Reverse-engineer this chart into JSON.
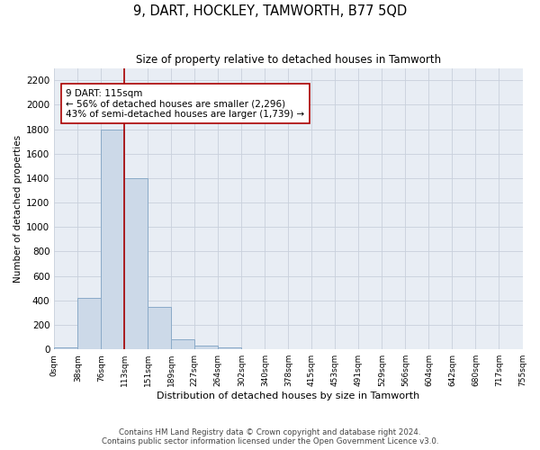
{
  "title": "9, DART, HOCKLEY, TAMWORTH, B77 5QD",
  "subtitle": "Size of property relative to detached houses in Tamworth",
  "xlabel": "Distribution of detached houses by size in Tamworth",
  "ylabel": "Number of detached properties",
  "bin_labels": [
    "0sqm",
    "38sqm",
    "76sqm",
    "113sqm",
    "151sqm",
    "189sqm",
    "227sqm",
    "264sqm",
    "302sqm",
    "340sqm",
    "378sqm",
    "415sqm",
    "453sqm",
    "491sqm",
    "529sqm",
    "566sqm",
    "604sqm",
    "642sqm",
    "680sqm",
    "717sqm",
    "755sqm"
  ],
  "bar_values": [
    15,
    420,
    1800,
    1400,
    350,
    80,
    30,
    15,
    0,
    0,
    0,
    0,
    0,
    0,
    0,
    0,
    0,
    0,
    0,
    0
  ],
  "bar_color": "#ccd9e8",
  "bar_edge_color": "#8aaac8",
  "grid_color": "#c8d0dc",
  "background_color": "#e8edf4",
  "vline_x": 3.0,
  "vline_color": "#aa0000",
  "annotation_text": "9 DART: 115sqm\n← 56% of detached houses are smaller (2,296)\n43% of semi-detached houses are larger (1,739) →",
  "annotation_box_color": "#ffffff",
  "annotation_box_edge": "#aa0000",
  "ylim": [
    0,
    2300
  ],
  "yticks": [
    0,
    200,
    400,
    600,
    800,
    1000,
    1200,
    1400,
    1600,
    1800,
    2000,
    2200
  ],
  "footer_line1": "Contains HM Land Registry data © Crown copyright and database right 2024.",
  "footer_line2": "Contains public sector information licensed under the Open Government Licence v3.0."
}
